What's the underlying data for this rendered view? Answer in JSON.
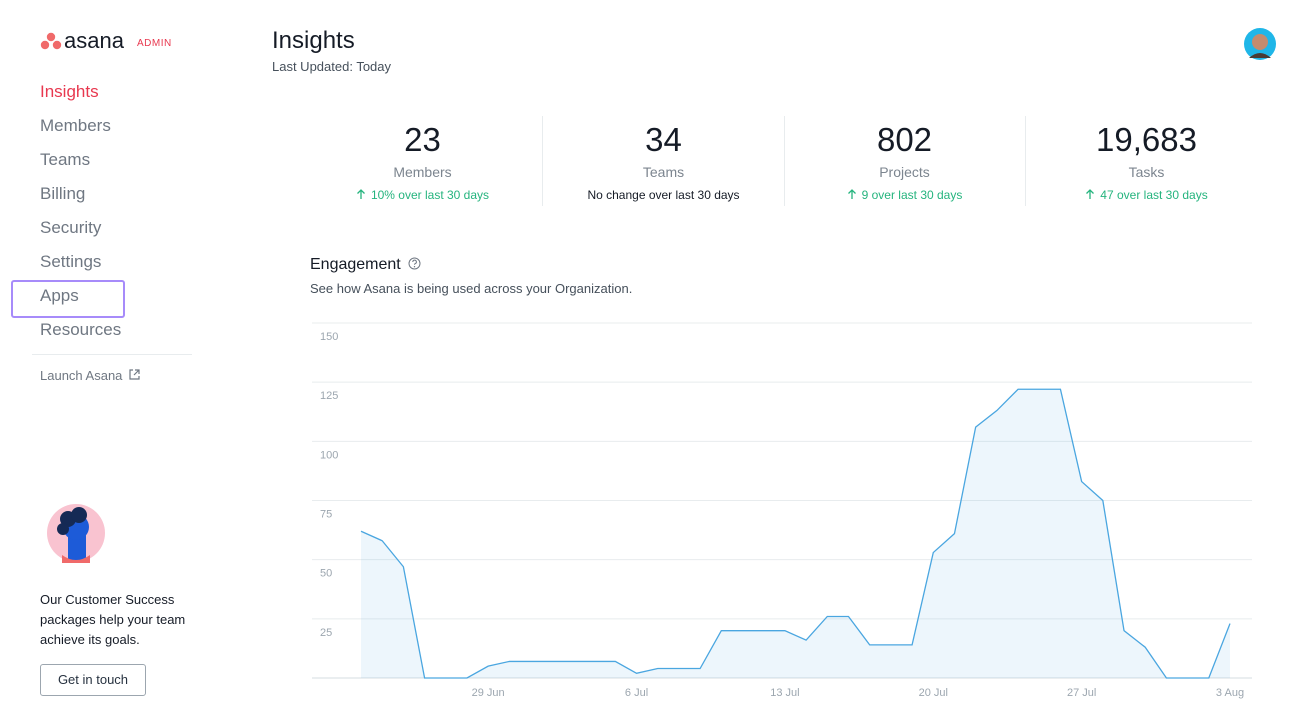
{
  "sidebar": {
    "logo": "asana",
    "badge": "ADMIN",
    "nav": [
      "Insights",
      "Members",
      "Teams",
      "Billing",
      "Security",
      "Settings",
      "Apps",
      "Resources"
    ],
    "launch": "Launch Asana",
    "promo": "Our Customer Success packages help your team achieve its goals.",
    "button": "Get in touch"
  },
  "header": {
    "title": "Insights",
    "subtitle": "Last Updated: Today"
  },
  "stats": [
    {
      "value": "23",
      "label": "Members",
      "change": "10% over last 30 days"
    },
    {
      "value": "34",
      "label": "Teams",
      "change": "No change over last 30 days"
    },
    {
      "value": "802",
      "label": "Projects",
      "change": "9 over last 30 days"
    },
    {
      "value": "19,683",
      "label": "Tasks",
      "change": "47 over last 30 days"
    }
  ],
  "chart_data": {
    "type": "area",
    "title": "Engagement",
    "subtitle": "See how Asana is being used across your Organization.",
    "categories": [
      null,
      null,
      null,
      null,
      null,
      null,
      "29 Jun",
      null,
      null,
      null,
      null,
      null,
      null,
      "6 Jul",
      null,
      null,
      null,
      null,
      null,
      null,
      "13 Jul",
      null,
      null,
      null,
      null,
      null,
      null,
      "20 Jul",
      null,
      null,
      null,
      null,
      null,
      null,
      "27 Jul",
      null,
      null,
      null,
      null,
      null,
      null,
      "3 Aug"
    ],
    "values": [
      62,
      58,
      47,
      0,
      0,
      0,
      5,
      7,
      7,
      7,
      7,
      7,
      7,
      2,
      4,
      4,
      4,
      20,
      20,
      20,
      20,
      16,
      26,
      26,
      14,
      14,
      14,
      53,
      61,
      106,
      113,
      122,
      122,
      122,
      83,
      75,
      20,
      13,
      0,
      0,
      0,
      23
    ],
    "color": "#4aa6e0",
    "ylim": [
      0,
      150
    ],
    "yticks": [
      25,
      50,
      75,
      100,
      125,
      150
    ],
    "grid": true
  }
}
